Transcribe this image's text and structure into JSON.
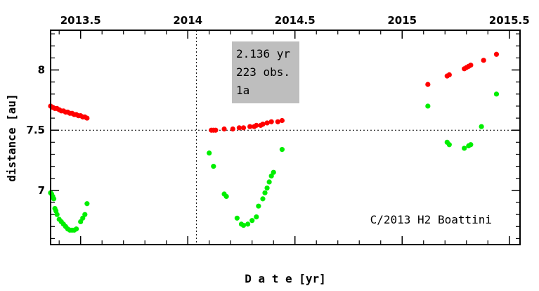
{
  "chart_data": {
    "type": "scatter",
    "title": "",
    "xlabel": "D a t e [yr]",
    "ylabel": "distance [au]",
    "xlim": [
      2013.36,
      2015.55
    ],
    "ylim": [
      6.55,
      8.33
    ],
    "x_ticks": [
      {
        "value": 2013.5,
        "label": "2013.5"
      },
      {
        "value": 2014.0,
        "label": "2014"
      },
      {
        "value": 2014.5,
        "label": "2014.5"
      },
      {
        "value": 2015.0,
        "label": "2015"
      },
      {
        "value": 2015.5,
        "label": "2015.5"
      }
    ],
    "y_ticks": [
      {
        "value": 7.0,
        "label": "7"
      },
      {
        "value": 7.5,
        "label": "7.5"
      },
      {
        "value": 8.0,
        "label": "8"
      }
    ],
    "reference_lines": {
      "horizontal_y": 7.5,
      "vertical_x": 2014.04
    },
    "info_box": [
      "2.136 yr",
      "223 obs.",
      "1a"
    ],
    "object_label": "C/2013 H2 Boattini",
    "grid": false,
    "legend": "none",
    "series": [
      {
        "color": "#ff0000",
        "x": [
          2013.36,
          2013.37,
          2013.38,
          2013.39,
          2013.4,
          2013.41,
          2013.42,
          2013.43,
          2013.44,
          2013.45,
          2013.46,
          2013.47,
          2013.48,
          2013.49,
          2013.5,
          2013.51,
          2013.52,
          2013.53,
          2014.11,
          2014.12,
          2014.13,
          2014.17,
          2014.21,
          2014.24,
          2014.26,
          2014.29,
          2014.31,
          2014.32,
          2014.34,
          2014.35,
          2014.37,
          2014.39,
          2014.42,
          2014.44,
          2015.12,
          2015.21,
          2015.22,
          2015.29,
          2015.3,
          2015.31,
          2015.32,
          2015.38,
          2015.44
        ],
        "y": [
          7.7,
          7.69,
          7.68,
          7.68,
          7.67,
          7.66,
          7.66,
          7.65,
          7.65,
          7.64,
          7.64,
          7.63,
          7.63,
          7.62,
          7.62,
          7.61,
          7.61,
          7.6,
          7.5,
          7.5,
          7.5,
          7.51,
          7.51,
          7.52,
          7.52,
          7.53,
          7.53,
          7.54,
          7.54,
          7.55,
          7.56,
          7.57,
          7.57,
          7.58,
          7.88,
          7.95,
          7.96,
          8.01,
          8.02,
          8.03,
          8.04,
          8.08,
          8.13
        ]
      },
      {
        "color": "#00ee00",
        "x": [
          2013.36,
          2013.365,
          2013.37,
          2013.375,
          2013.38,
          2013.385,
          2013.39,
          2013.4,
          2013.41,
          2013.42,
          2013.43,
          2013.44,
          2013.45,
          2013.46,
          2013.47,
          2013.48,
          2013.5,
          2013.51,
          2013.52,
          2013.53,
          2014.1,
          2014.12,
          2014.17,
          2014.18,
          2014.23,
          2014.25,
          2014.26,
          2014.28,
          2014.3,
          2014.32,
          2014.33,
          2014.35,
          2014.36,
          2014.37,
          2014.38,
          2014.39,
          2014.4,
          2014.44,
          2015.12,
          2015.21,
          2015.22,
          2015.29,
          2015.31,
          2015.32,
          2015.37,
          2015.44
        ],
        "y": [
          6.98,
          6.97,
          6.95,
          6.93,
          6.85,
          6.83,
          6.8,
          6.76,
          6.74,
          6.72,
          6.7,
          6.68,
          6.67,
          6.67,
          6.67,
          6.68,
          6.74,
          6.77,
          6.8,
          6.89,
          7.31,
          7.2,
          6.97,
          6.95,
          6.77,
          6.72,
          6.71,
          6.72,
          6.75,
          6.78,
          6.87,
          6.93,
          6.98,
          7.02,
          7.07,
          7.12,
          7.15,
          7.34,
          7.7,
          7.4,
          7.38,
          7.35,
          7.37,
          7.38,
          7.53,
          7.8
        ]
      }
    ]
  }
}
